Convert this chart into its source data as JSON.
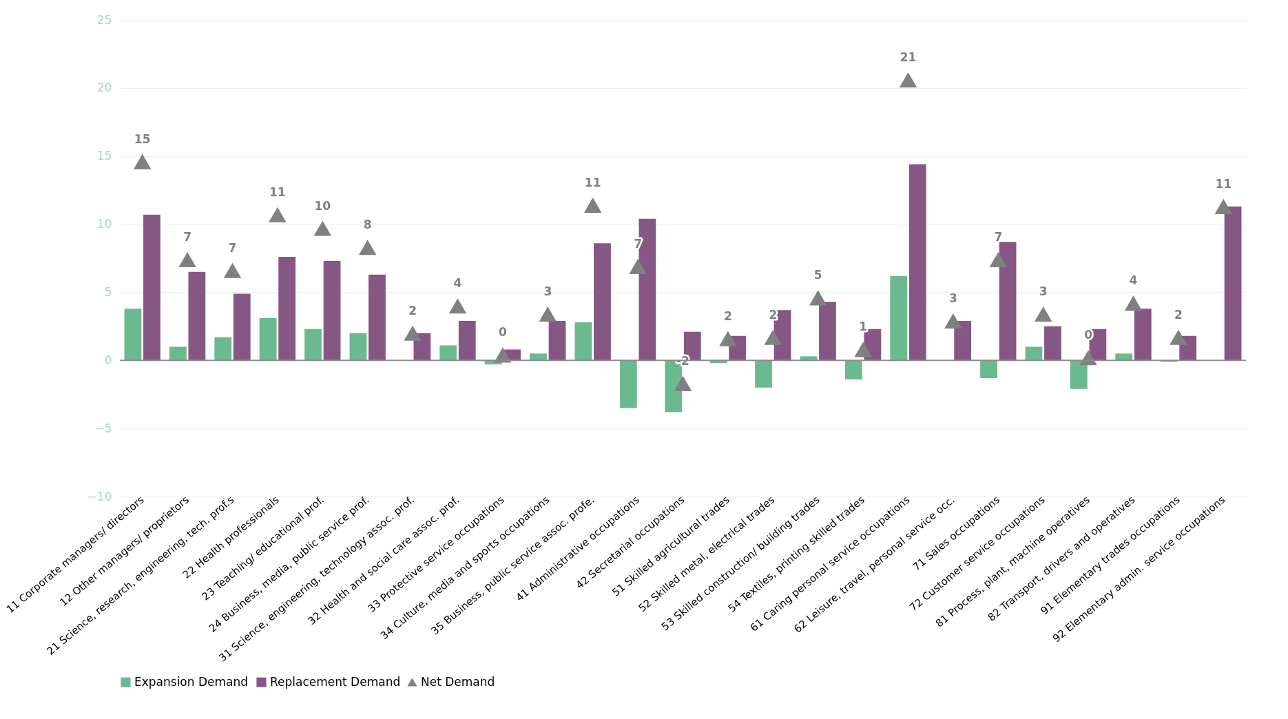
{
  "chart_data": {
    "type": "bar",
    "categories": [
      "11 Corporate managers/ directors",
      "12 Other managers/ proprietors",
      "21 Science, research, engineering, tech. prof.s",
      "22 Health professionals",
      "23 Teaching/ educational prof.",
      "24 Business, media, public service prof.",
      "31 Science, engineering, technology assoc. prof.",
      "32 Health and social care assoc. prof.",
      "33 Protective service occupations",
      "34 Culture, media and sports occupations",
      "35 Business, public service assoc. profe.",
      "41 Administrative occupations",
      "42 Secretarial occupations",
      "51 Skilled agricultural trades",
      "52 Skilled metal, electrical trades",
      "53 Skilled construction/ building trades",
      "54 Textiles, printing skilled trades",
      "61 Caring personal service occupations",
      "62 Leisure, travel, personal service occ.",
      "71 Sales occupations",
      "72 Customer service occupations",
      "81 Process, plant, machine operatives",
      "82 Transport, drivers and operatives",
      "91 Elementary trades occupations",
      "92 Elementary admin. service occupations"
    ],
    "series": [
      {
        "name": "Expansion Demand",
        "color": "#6bb98f",
        "values": [
          3.8,
          1.0,
          1.7,
          3.1,
          2.3,
          2.0,
          0,
          1.1,
          -0.3,
          0.5,
          2.8,
          -3.5,
          -3.8,
          -0.2,
          -2.0,
          0.3,
          -1.4,
          6.2,
          0,
          -1.3,
          1.0,
          -2.1,
          0.5,
          -0.1,
          0
        ]
      },
      {
        "name": "Replacement Demand",
        "color": "#865785",
        "values": [
          10.7,
          6.5,
          4.9,
          7.6,
          7.3,
          6.3,
          2.0,
          2.9,
          0.8,
          2.9,
          8.6,
          10.4,
          2.1,
          1.8,
          3.7,
          4.3,
          2.3,
          14.4,
          2.9,
          8.7,
          2.5,
          2.3,
          3.8,
          1.8,
          11.3
        ]
      },
      {
        "name": "Net Demand",
        "type": "scatter",
        "color": "#808080",
        "marker": "triangle",
        "values": [
          14.6,
          7.4,
          6.6,
          10.7,
          9.7,
          8.3,
          2.0,
          4.0,
          0.4,
          3.4,
          11.4,
          6.9,
          -1.7,
          1.6,
          1.7,
          4.6,
          0.8,
          20.6,
          2.9,
          7.4,
          3.4,
          0.2,
          4.2,
          1.7,
          11.3
        ],
        "value_labels": [
          "15",
          "7",
          "7",
          "11",
          "10",
          "8",
          "2",
          "4",
          "0",
          "3",
          "11",
          "7",
          "-2",
          "2",
          "2",
          "5",
          "1",
          "21",
          "3",
          "7",
          "3",
          "0",
          "4",
          "2",
          "11"
        ]
      }
    ],
    "ylim": [
      -10,
      25
    ],
    "yticks": [
      -10,
      -5,
      0,
      5,
      10,
      15,
      20,
      25
    ],
    "grid": "y",
    "legend": "bottom"
  }
}
